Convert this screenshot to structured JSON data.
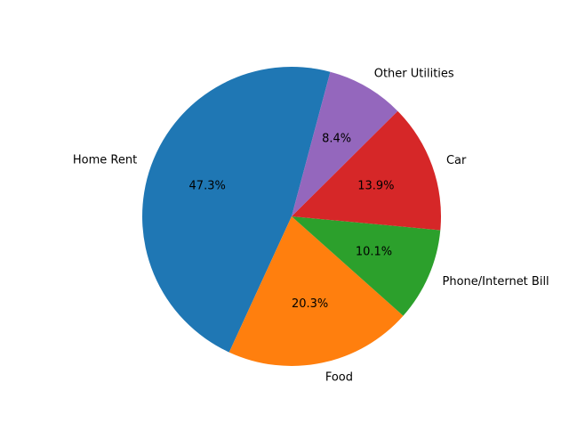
{
  "chart_data": {
    "type": "pie",
    "title": "",
    "categories": [
      "Home Rent",
      "Food",
      "Phone/Internet Bill",
      "Car",
      "Other Utilities"
    ],
    "values": [
      47.3,
      20.3,
      10.1,
      13.9,
      8.4
    ],
    "percent_labels": [
      "47.3%",
      "20.3%",
      "10.1%",
      "13.9%",
      "8.4%"
    ],
    "colors": [
      "#1f77b4",
      "#ff7f0e",
      "#2ca02c",
      "#d62728",
      "#9467bd"
    ],
    "start_angle_deg": 75,
    "direction": "counterclockwise",
    "legend": "none"
  }
}
